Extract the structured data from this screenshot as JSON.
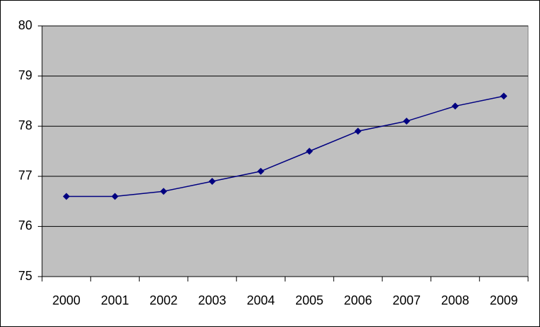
{
  "chart_data": {
    "type": "line",
    "categories": [
      "2000",
      "2001",
      "2002",
      "2003",
      "2004",
      "2005",
      "2006",
      "2007",
      "2008",
      "2009"
    ],
    "values": [
      76.6,
      76.6,
      76.7,
      76.9,
      77.1,
      77.5,
      77.9,
      78.1,
      78.4,
      78.6
    ],
    "color": "#000080",
    "ylim": [
      75,
      80
    ],
    "yticks": [
      75,
      76,
      77,
      78,
      79,
      80
    ],
    "grid": true,
    "plot_background": "#c0c0c0"
  }
}
